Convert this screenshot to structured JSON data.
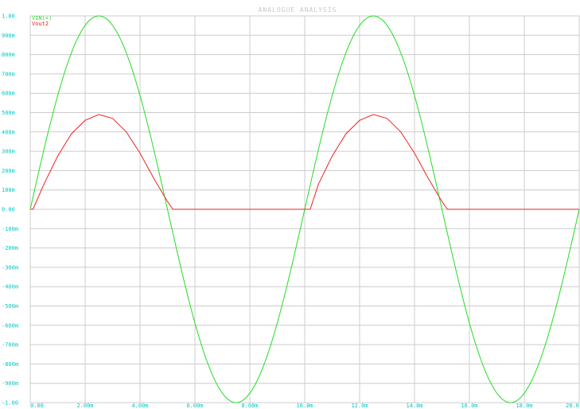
{
  "window": {
    "title": "ANALOGUE ANALYSIS"
  },
  "chart_data": {
    "type": "line",
    "title": "ANALOGUE ANALYSIS",
    "xlabel": "",
    "ylabel": "",
    "xlim": [
      0,
      20
    ],
    "ylim": [
      -1,
      1
    ],
    "grid": true,
    "legend_position": "top-left",
    "x_ticks": [
      0,
      2,
      4,
      6,
      8,
      10,
      12,
      14,
      16,
      18,
      20
    ],
    "x_tick_labels": [
      "0.00",
      "2.00m",
      "4.00m",
      "6.00m",
      "8.00m",
      "10.0m",
      "12.0m",
      "14.0m",
      "16.0m",
      "18.0m",
      "20.0"
    ],
    "y_ticks": [
      1.0,
      0.9,
      0.8,
      0.7,
      0.6,
      0.5,
      0.4,
      0.3,
      0.2,
      0.1,
      0.0,
      -0.1,
      -0.2,
      -0.3,
      -0.4,
      -0.5,
      -0.6,
      -0.7,
      -0.8,
      -0.9,
      -1.0
    ],
    "y_tick_labels": [
      "1.00",
      "900m",
      "800m",
      "700m",
      "600m",
      "500m",
      "400m",
      "300m",
      "200m",
      "100m",
      "0.00",
      "-100m",
      "-200m",
      "-300m",
      "-400m",
      "-500m",
      "-600m",
      "-700m",
      "-800m",
      "-900m",
      "-1.00"
    ],
    "series": [
      {
        "name": "VIN(+)",
        "color": "#22dd22",
        "x": [
          0,
          0.5,
          1,
          1.5,
          2,
          2.5,
          3,
          3.5,
          4,
          4.5,
          5,
          5.5,
          6,
          6.5,
          7,
          7.5,
          8,
          8.5,
          9,
          9.5,
          10,
          10.5,
          11,
          11.5,
          12,
          12.5,
          13,
          13.5,
          14,
          14.5,
          15,
          15.5,
          16,
          16.5,
          17,
          17.5,
          18,
          18.5,
          19,
          19.5,
          20
        ],
        "values": [
          0,
          0.309,
          0.588,
          0.809,
          0.951,
          1.0,
          0.951,
          0.809,
          0.588,
          0.309,
          0,
          -0.309,
          -0.588,
          -0.809,
          -0.951,
          -1.0,
          -0.951,
          -0.809,
          -0.588,
          -0.309,
          0,
          0.309,
          0.588,
          0.809,
          0.951,
          1.0,
          0.951,
          0.809,
          0.588,
          0.309,
          0,
          -0.309,
          -0.588,
          -0.809,
          -0.951,
          -1.0,
          -0.951,
          -0.809,
          -0.588,
          -0.309,
          0
        ]
      },
      {
        "name": "Vout2",
        "color": "#ee2222",
        "x": [
          0,
          0.1,
          0.5,
          1,
          1.5,
          2,
          2.5,
          3,
          3.5,
          4,
          4.5,
          5,
          5.2,
          5.4,
          10,
          10.2,
          10.5,
          11,
          11.5,
          12,
          12.5,
          13,
          13.5,
          14,
          14.5,
          15,
          15.2,
          15.4,
          20
        ],
        "values": [
          0,
          0,
          0.13,
          0.275,
          0.39,
          0.46,
          0.49,
          0.47,
          0.4,
          0.29,
          0.16,
          0.04,
          0,
          0,
          0,
          0,
          0.13,
          0.275,
          0.39,
          0.46,
          0.49,
          0.47,
          0.4,
          0.29,
          0.16,
          0.04,
          0,
          0,
          0
        ]
      }
    ]
  }
}
